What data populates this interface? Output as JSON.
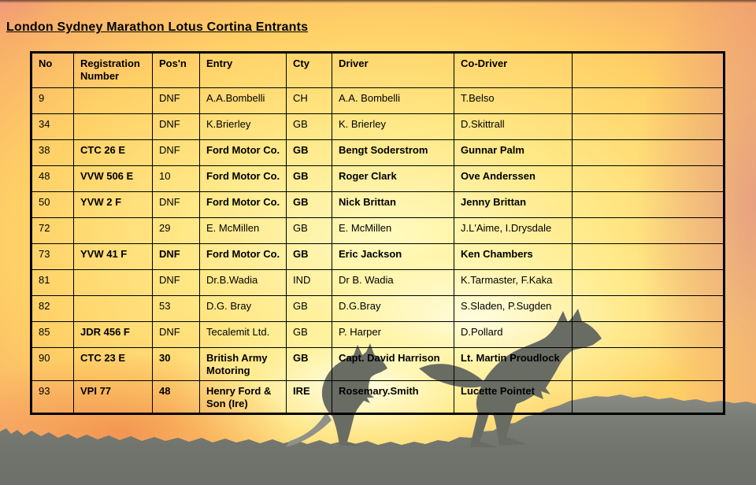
{
  "page": {
    "title": "London Sydney Marathon Lotus Cortina Entrants"
  },
  "table": {
    "columns": [
      "No",
      "Registration Number",
      "Pos'n",
      "Entry",
      "Cty",
      "Driver",
      "Co-Driver",
      ""
    ],
    "rows": [
      {
        "cells": [
          "9",
          "",
          "DNF",
          "A.A.Bombelli",
          "CH",
          "A.A. Bombelli",
          "T.Belso",
          ""
        ],
        "bold": [
          0,
          0,
          0,
          0,
          0,
          0,
          0,
          0
        ]
      },
      {
        "cells": [
          "34",
          "",
          "DNF",
          "K.Brierley",
          "GB",
          "K. Brierley",
          "D.Skittrall",
          ""
        ],
        "bold": [
          0,
          0,
          0,
          0,
          0,
          0,
          0,
          0
        ]
      },
      {
        "cells": [
          "38",
          "CTC 26 E",
          "DNF",
          "Ford Motor Co.",
          "GB",
          "Bengt Soderstrom",
          "Gunnar Palm",
          ""
        ],
        "bold": [
          0,
          1,
          0,
          1,
          1,
          1,
          1,
          0
        ]
      },
      {
        "cells": [
          "48",
          "VVW 506 E",
          "10",
          "Ford Motor Co.",
          "GB",
          "Roger Clark",
          "Ove Anderssen",
          ""
        ],
        "bold": [
          0,
          1,
          0,
          1,
          1,
          1,
          1,
          0
        ]
      },
      {
        "cells": [
          "50",
          "YVW 2 F",
          "DNF",
          "Ford Motor Co.",
          "GB",
          "Nick Brittan",
          "Jenny Brittan",
          ""
        ],
        "bold": [
          0,
          1,
          0,
          1,
          1,
          1,
          1,
          0
        ]
      },
      {
        "cells": [
          "72",
          "",
          "29",
          "E. McMillen",
          "GB",
          "E. McMillen",
          "J.L'Aime, I.Drysdale",
          ""
        ],
        "bold": [
          0,
          0,
          0,
          0,
          0,
          0,
          0,
          0
        ]
      },
      {
        "cells": [
          "73",
          "YVW 41 F",
          "DNF",
          "Ford Motor Co.",
          "GB",
          "Eric Jackson",
          "Ken Chambers",
          ""
        ],
        "bold": [
          0,
          1,
          1,
          1,
          1,
          1,
          1,
          0
        ]
      },
      {
        "cells": [
          "81",
          "",
          "DNF",
          "Dr.B.Wadia",
          "IND",
          "Dr B. Wadia",
          "K.Tarmaster, F.Kaka",
          ""
        ],
        "bold": [
          0,
          0,
          0,
          0,
          0,
          0,
          0,
          0
        ]
      },
      {
        "cells": [
          "82",
          "",
          "53",
          "D.G. Bray",
          "GB",
          "D.G.Bray",
          "S.Sladen, P.Sugden",
          ""
        ],
        "bold": [
          0,
          0,
          0,
          0,
          0,
          0,
          0,
          0
        ]
      },
      {
        "cells": [
          "85",
          "JDR 456 F",
          "DNF",
          "Tecalemit Ltd.",
          "GB",
          "P. Harper",
          "D.Pollard",
          ""
        ],
        "bold": [
          0,
          1,
          0,
          0,
          0,
          0,
          0,
          0
        ]
      },
      {
        "cells": [
          "90",
          "CTC 23 E",
          "30",
          "British Army Motoring",
          "GB",
          "Capt. David Harrison",
          "Lt. Martin Proudlock",
          ""
        ],
        "bold": [
          0,
          1,
          1,
          1,
          1,
          1,
          1,
          0
        ]
      },
      {
        "cells": [
          "93",
          "VPI 77",
          "48",
          "Henry Ford & Son (Ire)",
          "IRE",
          "Rosemary.Smith",
          "Lucette Pointet",
          ""
        ],
        "bold": [
          0,
          1,
          1,
          1,
          1,
          1,
          1,
          0
        ]
      }
    ]
  },
  "colors": {
    "border": "#000000",
    "text": "#000000",
    "title_text": "#000000",
    "hill_gray": "#75786f",
    "kangaroo_gray": "#696c63",
    "sky_yellow": "#ffe886",
    "sky_salmon": "#eb907c",
    "sun_glow": "#fffbe0"
  },
  "scene": {
    "description": "sunset outback photo with two kangaroo silhouettes and grassy hill horizon"
  }
}
